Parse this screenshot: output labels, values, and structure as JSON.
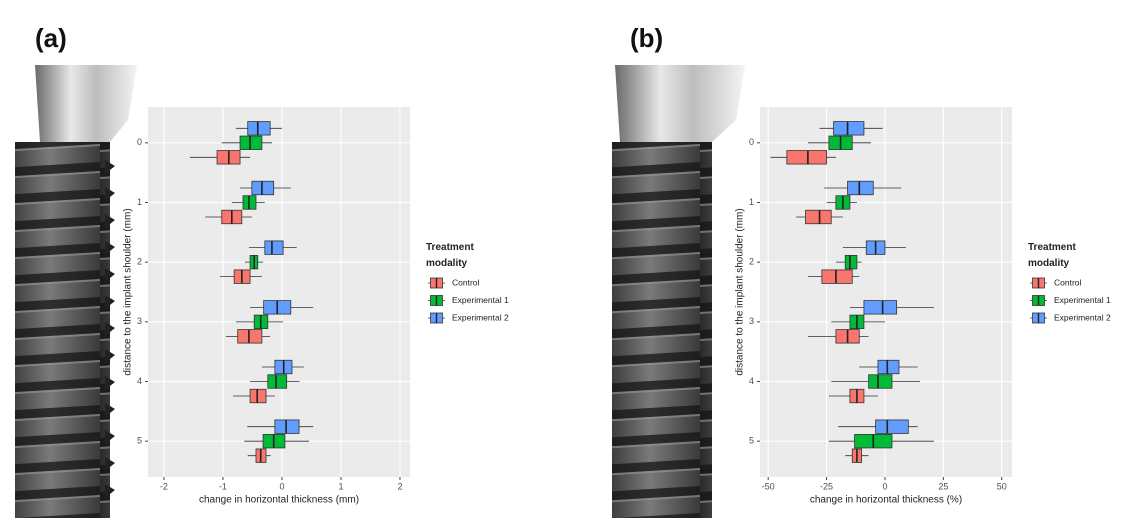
{
  "chart_data": [
    {
      "type": "box",
      "label": "(a)",
      "x_label": "change in horizontal thickness (mm)",
      "y_label": "distance to the implant shoulder (mm)",
      "legend_title": "Treatment modality",
      "categories": [
        "0",
        "1",
        "2",
        "3",
        "4",
        "5"
      ],
      "xlim": [
        -2.27,
        2.17
      ],
      "xticks": [
        -2,
        -1,
        0,
        1,
        2
      ],
      "grid": true,
      "series": [
        {
          "name": "Control",
          "color": "#F8766D",
          "values": [
            {
              "min": -1.56,
              "q1": -1.1,
              "median": -0.9,
              "q3": -0.71,
              "max": -0.54
            },
            {
              "min": -1.3,
              "q1": -1.02,
              "median": -0.85,
              "q3": -0.68,
              "max": -0.51
            },
            {
              "min": -1.05,
              "q1": -0.81,
              "median": -0.68,
              "q3": -0.54,
              "max": -0.34
            },
            {
              "min": -0.95,
              "q1": -0.75,
              "median": -0.56,
              "q3": -0.34,
              "max": -0.2
            },
            {
              "min": -0.83,
              "q1": -0.54,
              "median": -0.42,
              "q3": -0.27,
              "max": -0.12
            },
            {
              "min": -0.58,
              "q1": -0.44,
              "median": -0.36,
              "q3": -0.27,
              "max": -0.19
            }
          ]
        },
        {
          "name": "Experimental 1",
          "color": "#00BA38",
          "values": [
            {
              "min": -1.02,
              "q1": -0.71,
              "median": -0.54,
              "q3": -0.34,
              "max": -0.17
            },
            {
              "min": -0.85,
              "q1": -0.66,
              "median": -0.56,
              "q3": -0.44,
              "max": -0.29
            },
            {
              "min": -0.63,
              "q1": -0.54,
              "median": -0.47,
              "q3": -0.41,
              "max": -0.32
            },
            {
              "min": -0.78,
              "q1": -0.47,
              "median": -0.36,
              "q3": -0.24,
              "max": 0.02
            },
            {
              "min": -0.54,
              "q1": -0.24,
              "median": -0.1,
              "q3": 0.08,
              "max": 0.3
            },
            {
              "min": -0.64,
              "q1": -0.32,
              "median": -0.14,
              "q3": 0.05,
              "max": 0.46
            }
          ]
        },
        {
          "name": "Experimental 2",
          "color": "#619CFF",
          "values": [
            {
              "min": -0.78,
              "q1": -0.58,
              "median": -0.41,
              "q3": -0.2,
              "max": 0.0
            },
            {
              "min": -0.71,
              "q1": -0.51,
              "median": -0.34,
              "q3": -0.14,
              "max": 0.15
            },
            {
              "min": -0.56,
              "q1": -0.29,
              "median": -0.17,
              "q3": 0.02,
              "max": 0.25
            },
            {
              "min": -0.54,
              "q1": -0.31,
              "median": -0.08,
              "q3": 0.15,
              "max": 0.53
            },
            {
              "min": -0.34,
              "q1": -0.12,
              "median": 0.03,
              "q3": 0.17,
              "max": 0.37
            },
            {
              "min": -0.59,
              "q1": -0.12,
              "median": 0.07,
              "q3": 0.29,
              "max": 0.53
            }
          ]
        }
      ]
    },
    {
      "type": "box",
      "label": "(b)",
      "x_label": "change in horizontal thickness (%)",
      "y_label": "distance to the implant shoulder (mm)",
      "legend_title": "Treatment modality",
      "categories": [
        "0",
        "1",
        "2",
        "3",
        "4",
        "5"
      ],
      "xlim": [
        -53.5,
        54.4
      ],
      "xticks": [
        -50,
        -25,
        0,
        25,
        50
      ],
      "grid": true,
      "series": [
        {
          "name": "Control",
          "color": "#F8766D",
          "values": [
            {
              "min": -49,
              "q1": -42,
              "median": -33,
              "q3": -25,
              "max": -21
            },
            {
              "min": -38,
              "q1": -34,
              "median": -28,
              "q3": -23,
              "max": -18
            },
            {
              "min": -33,
              "q1": -27,
              "median": -21,
              "q3": -14,
              "max": -11
            },
            {
              "min": -33,
              "q1": -21,
              "median": -16,
              "q3": -11,
              "max": -7
            },
            {
              "min": -24,
              "q1": -15,
              "median": -12,
              "q3": -9,
              "max": -3
            },
            {
              "min": -17,
              "q1": -14,
              "median": -12,
              "q3": -10,
              "max": -7
            }
          ]
        },
        {
          "name": "Experimental 1",
          "color": "#00BA38",
          "values": [
            {
              "min": -33,
              "q1": -24,
              "median": -19,
              "q3": -14,
              "max": -6
            },
            {
              "min": -25,
              "q1": -21,
              "median": -18,
              "q3": -15,
              "max": -12
            },
            {
              "min": -21,
              "q1": -17,
              "median": -15,
              "q3": -12,
              "max": -10
            },
            {
              "min": -23,
              "q1": -15,
              "median": -12,
              "q3": -9,
              "max": 0
            },
            {
              "min": -23,
              "q1": -7,
              "median": -3,
              "q3": 3,
              "max": 15
            },
            {
              "min": -24,
              "q1": -13,
              "median": -5,
              "q3": 3,
              "max": 21
            }
          ]
        },
        {
          "name": "Experimental 2",
          "color": "#619CFF",
          "values": [
            {
              "min": -28,
              "q1": -22,
              "median": -16,
              "q3": -9,
              "max": -1
            },
            {
              "min": -26,
              "q1": -16,
              "median": -11,
              "q3": -5,
              "max": 7
            },
            {
              "min": -18,
              "q1": -8,
              "median": -4,
              "q3": 0,
              "max": 9
            },
            {
              "min": -15,
              "q1": -9,
              "median": -1,
              "q3": 5,
              "max": 21
            },
            {
              "min": -11,
              "q1": -3,
              "median": 1,
              "q3": 6,
              "max": 14
            },
            {
              "min": -20,
              "q1": -4,
              "median": 1,
              "q3": 10,
              "max": 14
            }
          ]
        }
      ]
    }
  ]
}
